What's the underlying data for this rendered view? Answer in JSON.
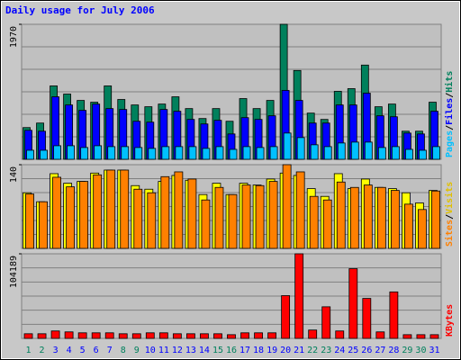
{
  "chart_data": [
    {
      "type": "bar",
      "title": "Daily usage for July 2006",
      "title_color": "#0000ff",
      "ylim": [
        0,
        1970
      ],
      "yticks": [
        1970
      ],
      "legend_separator": "/",
      "series": [
        {
          "name": "Hits",
          "color": "#00805c",
          "values": [
            463,
            529,
            1071,
            952,
            859,
            833,
            1071,
            873,
            793,
            767,
            806,
            912,
            740,
            595,
            740,
            555,
            886,
            740,
            859,
            1970,
            1296,
            674,
            582,
            992,
            1031,
            1375,
            767,
            806,
            410,
            410,
            833
          ]
        },
        {
          "name": "Files",
          "color": "#0000ff",
          "values": [
            423,
            410,
            912,
            793,
            714,
            806,
            740,
            727,
            555,
            542,
            727,
            701,
            582,
            516,
            569,
            370,
            608,
            582,
            635,
            1005,
            859,
            529,
            529,
            793,
            793,
            965,
            635,
            621,
            383,
            370,
            701
          ]
        },
        {
          "name": "Pages",
          "color": "#00c0ff",
          "values": [
            132,
            132,
            198,
            198,
            172,
            198,
            185,
            185,
            172,
            159,
            185,
            185,
            185,
            159,
            185,
            145,
            185,
            172,
            185,
            383,
            317,
            212,
            185,
            238,
            251,
            251,
            172,
            185,
            145,
            132,
            185
          ]
        }
      ]
    },
    {
      "type": "bar",
      "ylim": [
        0,
        140
      ],
      "yticks": [
        140
      ],
      "legend_separator": "/",
      "series": [
        {
          "name": "Visits",
          "color": "#ffff00",
          "values": [
            93,
            78,
            125,
            109,
            112,
            126,
            131,
            131,
            105,
            99,
            112,
            122,
            114,
            90,
            109,
            90,
            109,
            106,
            116,
            126,
            122,
            100,
            87,
            125,
            100,
            116,
            102,
            100,
            93,
            76,
            97
          ]
        },
        {
          "name": "Sites",
          "color": "#ff8000",
          "values": [
            91,
            78,
            119,
            103,
            112,
            123,
            131,
            131,
            99,
            93,
            120,
            128,
            116,
            81,
            102,
            90,
            106,
            105,
            112,
            140,
            128,
            87,
            81,
            111,
            102,
            106,
            102,
            97,
            74,
            65,
            96
          ]
        }
      ]
    },
    {
      "type": "bar",
      "ylim": [
        0,
        104189
      ],
      "yticks": [
        104189
      ],
      "categories": [
        "1",
        "2",
        "3",
        "4",
        "5",
        "6",
        "7",
        "8",
        "9",
        "10",
        "11",
        "12",
        "13",
        "14",
        "15",
        "16",
        "17",
        "18",
        "19",
        "20",
        "21",
        "22",
        "23",
        "24",
        "25",
        "26",
        "27",
        "28",
        "29",
        "30",
        "31"
      ],
      "category_colors": [
        "#00805c",
        "#00805c",
        "#0000ff",
        "#0000ff",
        "#0000ff",
        "#0000ff",
        "#0000ff",
        "#00805c",
        "#00805c",
        "#0000ff",
        "#0000ff",
        "#0000ff",
        "#0000ff",
        "#0000ff",
        "#00805c",
        "#00805c",
        "#0000ff",
        "#0000ff",
        "#0000ff",
        "#0000ff",
        "#0000ff",
        "#00805c",
        "#00805c",
        "#0000ff",
        "#0000ff",
        "#0000ff",
        "#0000ff",
        "#0000ff",
        "#00805c",
        "#00805c",
        "#0000ff"
      ],
      "series": [
        {
          "name": "KBytes",
          "color": "#ff0000",
          "values": [
            5725,
            5725,
            9160,
            8015,
            6870,
            6870,
            6870,
            5725,
            5725,
            6870,
            6870,
            5725,
            5725,
            5725,
            5725,
            4580,
            6870,
            6870,
            6870,
            52670,
            104189,
            10305,
            38930,
            9160,
            85875,
            49235,
            8015,
            57250,
            4580,
            4580,
            4580
          ]
        }
      ]
    }
  ]
}
